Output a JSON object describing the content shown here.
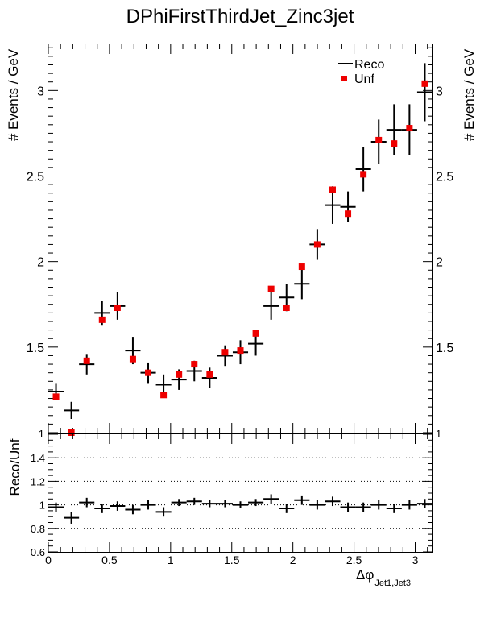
{
  "title": "DPhiFirstThirdJet_Zinc3jet",
  "colors": {
    "reco": "#000000",
    "unf": "#ee0000",
    "grid": "#000000"
  },
  "chart_data": [
    {
      "type": "scatter",
      "title": "DPhiFirstThirdJet_Zinc3jet",
      "ylabel": "# Events / GeV",
      "ylabel_right": "# Events / GeV",
      "xlim": [
        0,
        3.1416
      ],
      "ylim": [
        1,
        3.27
      ],
      "yticks": [
        1,
        1.5,
        2,
        2.5,
        3
      ],
      "ytick_labels": [
        "1",
        "1.5",
        "2",
        "2.5",
        "3"
      ],
      "legend": {
        "position": "top-right",
        "entries": [
          "Reco",
          "Unf"
        ]
      },
      "series": [
        {
          "name": "Reco",
          "marker": "cross-errorbar",
          "x": [
            0.0628,
            0.1885,
            0.3142,
            0.4398,
            0.5655,
            0.6912,
            0.8168,
            0.9425,
            1.0681,
            1.1938,
            1.3195,
            1.4451,
            1.5708,
            1.6965,
            1.8221,
            1.9478,
            2.0735,
            2.1991,
            2.3248,
            2.4504,
            2.5761,
            2.7018,
            2.8274,
            2.9531,
            3.0788
          ],
          "xerr": 0.0628,
          "y": [
            1.24,
            1.13,
            1.4,
            1.7,
            1.74,
            1.48,
            1.35,
            1.28,
            1.31,
            1.36,
            1.32,
            1.45,
            1.47,
            1.52,
            1.74,
            1.79,
            1.87,
            2.1,
            2.33,
            2.32,
            2.54,
            2.7,
            2.77,
            2.77,
            2.99
          ],
          "yerr": [
            0.05,
            0.05,
            0.06,
            0.07,
            0.08,
            0.08,
            0.06,
            0.06,
            0.06,
            0.06,
            0.06,
            0.06,
            0.07,
            0.07,
            0.08,
            0.08,
            0.09,
            0.09,
            0.11,
            0.09,
            0.13,
            0.13,
            0.15,
            0.15,
            0.17
          ]
        },
        {
          "name": "Unf",
          "marker": "square",
          "x": [
            0.0628,
            0.1885,
            0.3142,
            0.4398,
            0.5655,
            0.6912,
            0.8168,
            0.9425,
            1.0681,
            1.1938,
            1.3195,
            1.4451,
            1.5708,
            1.6965,
            1.8221,
            1.9478,
            2.0735,
            2.1991,
            2.3248,
            2.4504,
            2.5761,
            2.7018,
            2.8274,
            2.9531,
            3.0788
          ],
          "y": [
            1.21,
            1.0,
            1.42,
            1.66,
            1.73,
            1.43,
            1.35,
            1.22,
            1.34,
            1.4,
            1.34,
            1.47,
            1.48,
            1.58,
            1.84,
            1.73,
            1.97,
            2.1,
            2.42,
            2.28,
            2.51,
            2.71,
            2.69,
            2.78,
            3.04
          ]
        }
      ]
    },
    {
      "type": "scatter",
      "xlabel": "Δφ",
      "xlabel_sub": "Jet1,Jet3",
      "ylabel": "Reco/Unf",
      "xlim": [
        0,
        3.1416
      ],
      "ylim": [
        0.6,
        1.6
      ],
      "yticks": [
        0.6,
        0.8,
        1,
        1.2,
        1.4
      ],
      "ytick_labels": [
        "0.6",
        "0.8",
        "1",
        "1.2",
        "1.4"
      ],
      "xticks": [
        0,
        0.5,
        1,
        1.5,
        2,
        2.5,
        3
      ],
      "xtick_labels": [
        "0",
        "0.5",
        "1",
        "1.5",
        "2",
        "2.5",
        "3"
      ],
      "grid": "horizontal dotted at 0.8, 1, 1.2, 1.4",
      "series": [
        {
          "name": "Reco/Unf",
          "x": [
            0.0628,
            0.1885,
            0.3142,
            0.4398,
            0.5655,
            0.6912,
            0.8168,
            0.9425,
            1.0681,
            1.1938,
            1.3195,
            1.4451,
            1.5708,
            1.6965,
            1.8221,
            1.9478,
            2.0735,
            2.1991,
            2.3248,
            2.4504,
            2.5761,
            2.7018,
            2.8274,
            2.9531,
            3.0788
          ],
          "xerr": 0.0628,
          "y": [
            0.98,
            0.89,
            1.02,
            0.97,
            0.99,
            0.96,
            1.0,
            0.94,
            1.02,
            1.03,
            1.01,
            1.01,
            1.0,
            1.02,
            1.05,
            0.97,
            1.04,
            1.0,
            1.03,
            0.98,
            0.98,
            1.0,
            0.97,
            1.0,
            1.01
          ],
          "yerr": [
            0.04,
            0.05,
            0.04,
            0.04,
            0.04,
            0.04,
            0.04,
            0.04,
            0.03,
            0.03,
            0.03,
            0.03,
            0.03,
            0.03,
            0.04,
            0.04,
            0.04,
            0.04,
            0.04,
            0.04,
            0.04,
            0.04,
            0.04,
            0.04,
            0.04
          ]
        }
      ]
    }
  ]
}
